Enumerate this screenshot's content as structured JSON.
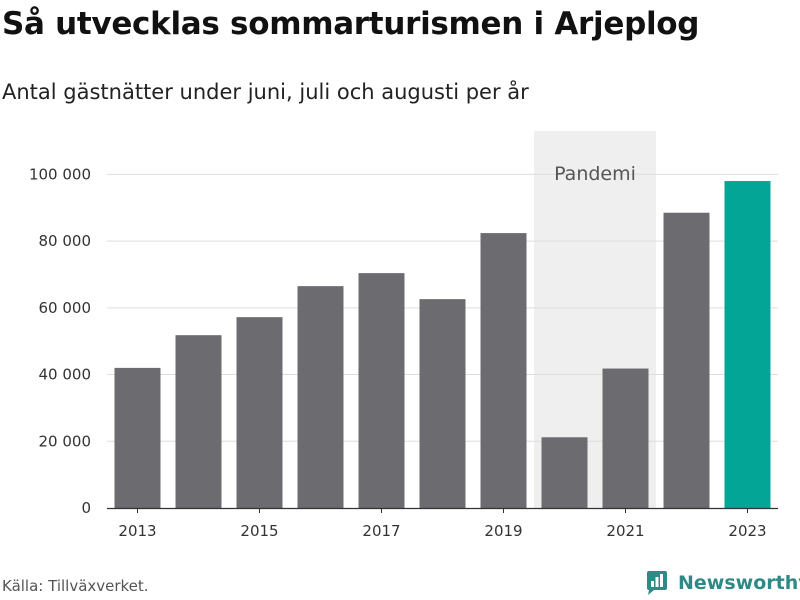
{
  "header": {
    "title": "Så utvecklas sommarturismen i Arjeplog",
    "subtitle": "Antal gästnätter under juni, juli och augusti per år"
  },
  "footer": {
    "source": "Källa: Tillväxverket.",
    "brand": "Newsworthy",
    "brand_icon": "newsworthy-logo-icon"
  },
  "chart_data": {
    "type": "bar",
    "title": "Så utvecklas sommarturismen i Arjeplog",
    "subtitle": "Antal gästnätter under juni, juli och augusti per år",
    "categories": [
      2013,
      2014,
      2015,
      2016,
      2017,
      2018,
      2019,
      2020,
      2021,
      2022,
      2023
    ],
    "values": [
      42000,
      51800,
      57200,
      66500,
      70400,
      62600,
      82400,
      21200,
      41800,
      88500,
      98000
    ],
    "x_tick_labels": [
      "2013",
      "2015",
      "2017",
      "2019",
      "2021",
      "2023"
    ],
    "y_ticks": [
      0,
      20000,
      40000,
      60000,
      80000,
      100000
    ],
    "y_tick_labels": [
      "0",
      "20 000",
      "40 000",
      "60 000",
      "80 000",
      "100 000"
    ],
    "ylim": [
      0,
      113000
    ],
    "xlabel": "",
    "ylabel": "",
    "grid": "horizontal",
    "colors": {
      "bar": "#6c6b70",
      "highlight": "#02a596",
      "shade": "#efefef",
      "grid": "#dddddd",
      "axis": "#333333"
    },
    "highlight_category": 2023,
    "annotation": {
      "label": "Pandemi",
      "from": 2020,
      "to": 2021
    }
  }
}
